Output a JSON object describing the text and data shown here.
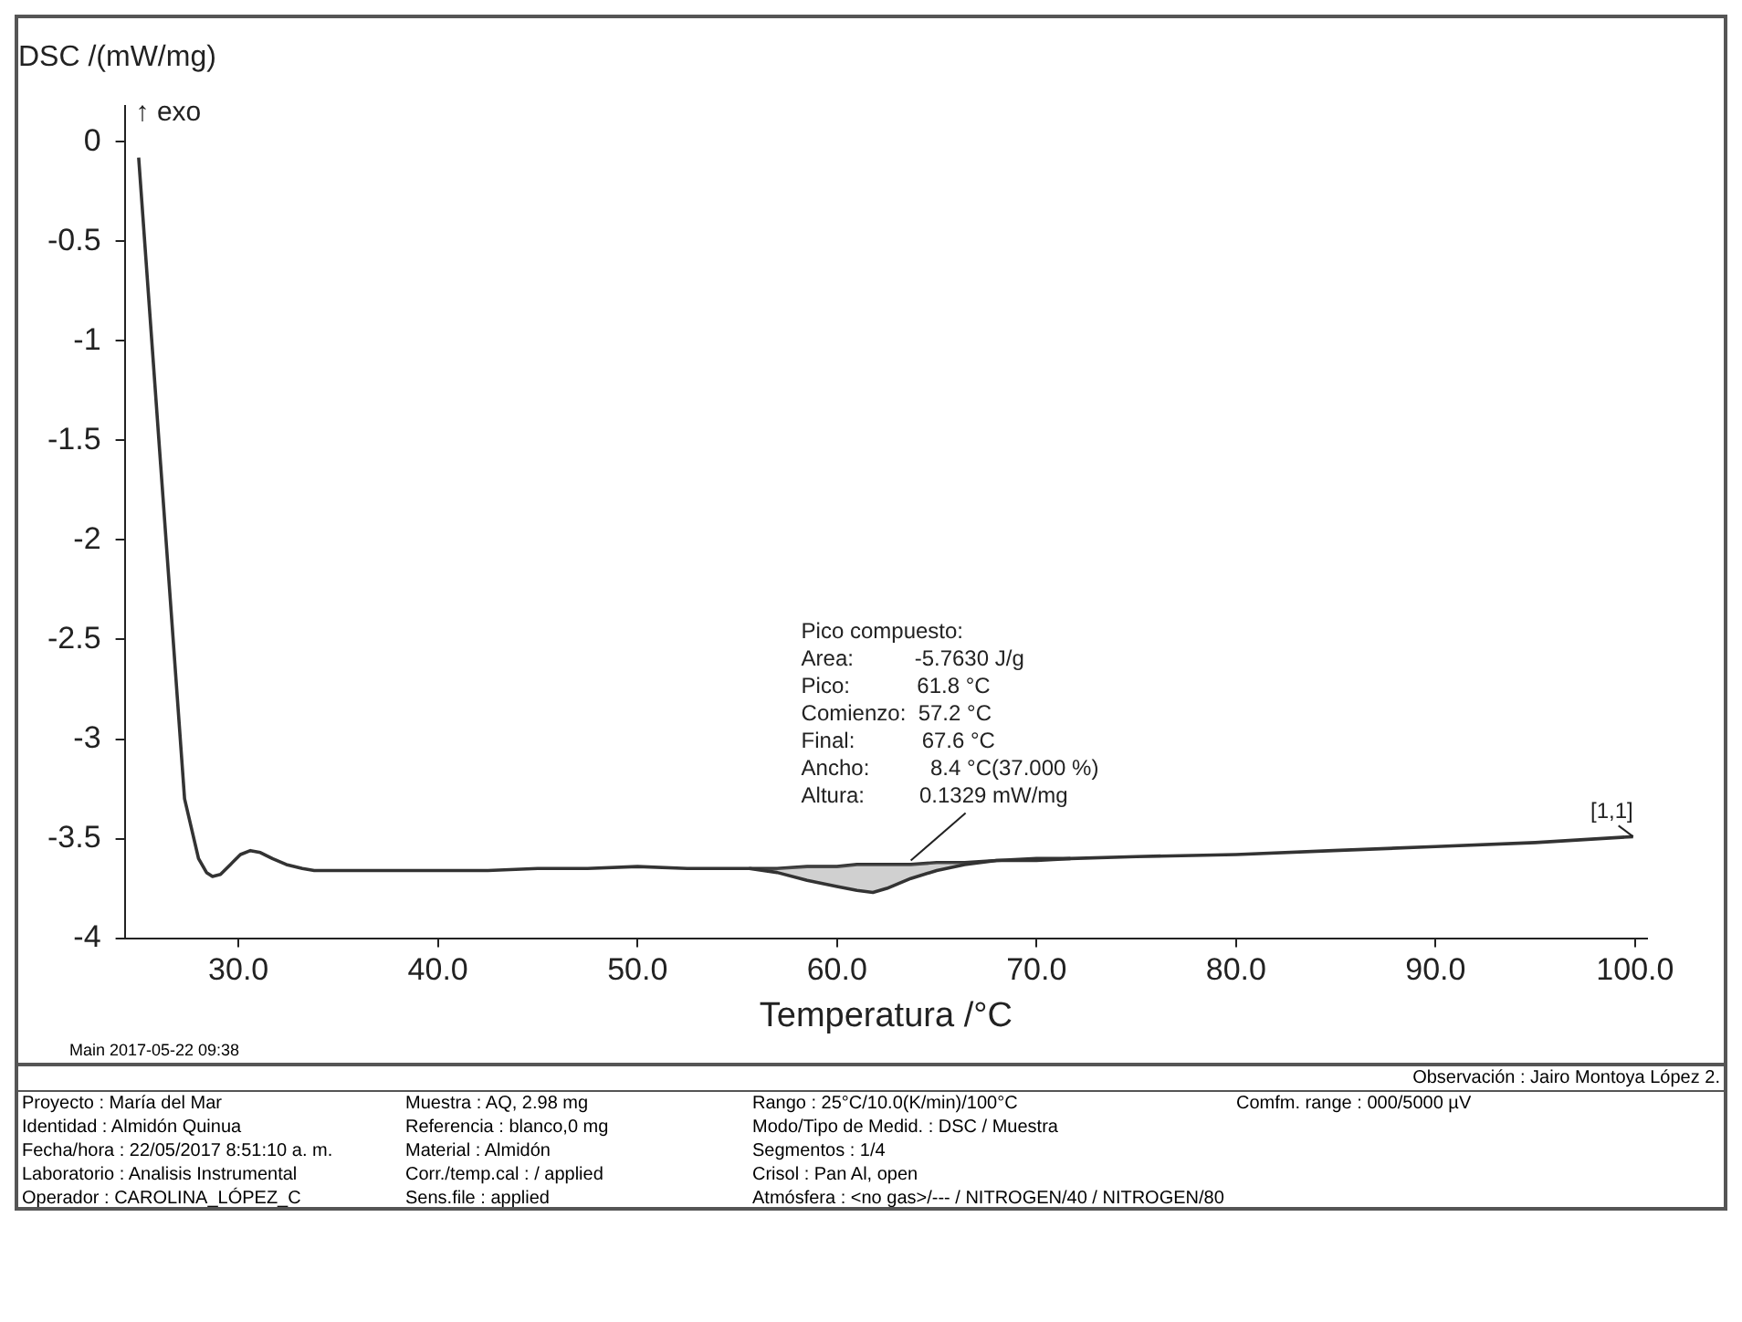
{
  "chart_data": {
    "type": "line",
    "xlabel": "Temperatura /°C",
    "ylabel": "DSC /(mW/mg)",
    "xlim": [
      24.3,
      100.6
    ],
    "ylim": [
      -4,
      0.18
    ],
    "xticks": [
      {
        "value": 30,
        "label": "30.0"
      },
      {
        "value": 40,
        "label": "40.0"
      },
      {
        "value": 50,
        "label": "50.0"
      },
      {
        "value": 60,
        "label": "60.0"
      },
      {
        "value": 70,
        "label": "70.0"
      },
      {
        "value": 80,
        "label": "80.0"
      },
      {
        "value": 90,
        "label": "90.0"
      },
      {
        "value": 100,
        "label": "100.0"
      }
    ],
    "yticks": [
      0,
      -0.5,
      -1,
      -1.5,
      -2,
      -2.5,
      -3,
      -3.5,
      -4
    ],
    "grid": false,
    "legend": false,
    "marker": "none",
    "line_style": "solid",
    "series": [
      {
        "color": "#333333",
        "x": [
          25.0,
          27.3,
          28.0,
          28.4,
          28.7,
          29.1,
          29.6,
          30.1,
          30.6,
          31.1,
          31.7,
          32.4,
          33.2,
          33.8,
          35,
          37.5,
          40,
          42.5,
          45,
          47.5,
          50,
          52.5,
          55.6,
          57,
          58.5,
          60,
          61,
          61.8,
          62.5,
          63.7,
          65,
          66.4,
          68,
          70,
          71.7,
          75,
          80,
          84.9,
          90,
          95,
          99.9
        ],
        "values": [
          -0.08,
          -3.3,
          -3.6,
          -3.67,
          -3.69,
          -3.68,
          -3.63,
          -3.58,
          -3.56,
          -3.57,
          -3.6,
          -3.63,
          -3.65,
          -3.66,
          -3.66,
          -3.66,
          -3.66,
          -3.66,
          -3.65,
          -3.65,
          -3.64,
          -3.65,
          -3.65,
          -3.67,
          -3.71,
          -3.74,
          -3.76,
          -3.77,
          -3.75,
          -3.7,
          -3.66,
          -3.63,
          -3.61,
          -3.6,
          -3.6,
          -3.59,
          -3.58,
          -3.56,
          -3.54,
          -3.52,
          -3.49
        ]
      },
      {
        "color": "#333333",
        "type": "line",
        "x": [
          55.6,
          57,
          58.5,
          60,
          61,
          61.8,
          62.5,
          63.7,
          65,
          66.4,
          68,
          70,
          71.7
        ],
        "values": [
          -3.65,
          -3.65,
          -3.64,
          -3.64,
          -3.63,
          -3.63,
          -3.63,
          -3.63,
          -3.62,
          -3.62,
          -3.61,
          -3.61,
          -3.6
        ],
        "lower": [
          -3.65,
          -3.67,
          -3.71,
          -3.74,
          -3.76,
          -3.77,
          -3.75,
          -3.7,
          -3.66,
          -3.63,
          -3.61,
          -3.61,
          -3.6
        ],
        "upper": [
          -3.65,
          -3.65,
          -3.64,
          -3.64,
          -3.63,
          -3.63,
          -3.63,
          -3.63,
          -3.62,
          -3.62,
          -3.61,
          -3.61,
          -3.6
        ]
      }
    ],
    "annotations": [
      "↑ exo",
      {
        "text": "Pico compuesto:\nArea:          -5.7630 J/g\nPico:           61.8 °C\nComienzo:  57.2 °C\nFinal:           67.6 °C\nAncho:          8.4 °C(37.000 %)\nAltura:         0.1329 mW/mg",
        "x": 63.7,
        "y": -3.61
      },
      {
        "text": "[1,1]",
        "x": 99.9,
        "y": -3.49
      },
      "Main   2017-05-22 09:38",
      "Observación : Jairo Montoya López 2.",
      "Proyecto : María del Mar",
      "Identidad : Almidón Quinua",
      "Fecha/hora : 22/05/2017 8:51:10 a. m.",
      "Laboratorio : Analisis Instrumental",
      "Operador : CAROLINA_LÓPEZ_C",
      "Muestra : AQ, 2.98 mg",
      "Referencia : blanco,0 mg",
      "Material : Almidón",
      "Corr./temp.cal : / applied",
      "Sens.file : applied",
      "Rango : 25°C/10.0(K/min)/100°C",
      "Modo/Tipo de Medid. : DSC / Muestra",
      "Segmentos : 1/4",
      "Crisol : Pan Al, open",
      "Atmósfera : <no gas>/--- / NITROGEN/40 / NITROGEN/80",
      "Comfm. range : 000/5000 µV"
    ]
  }
}
